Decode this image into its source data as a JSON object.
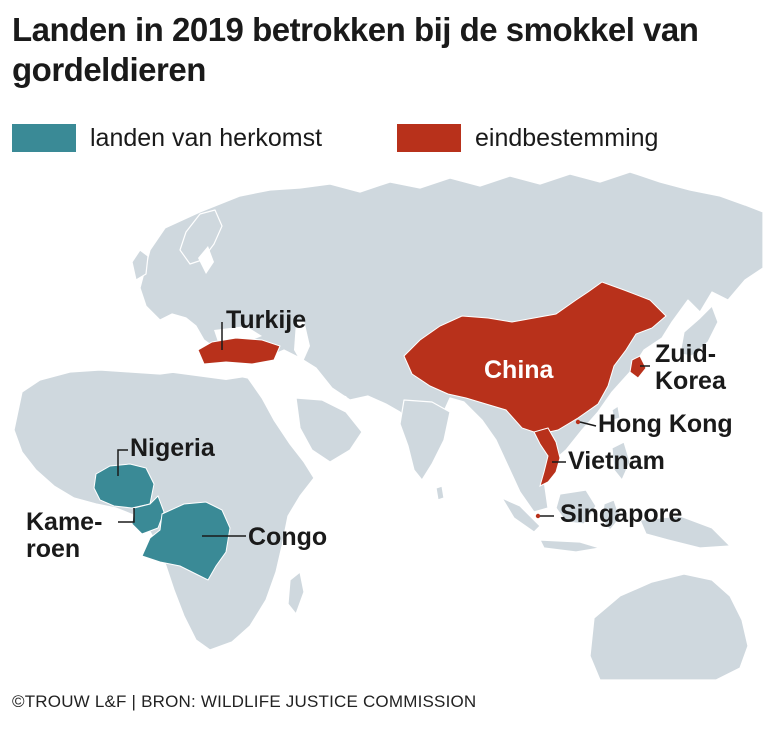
{
  "title": "Landen in 2019 betrokken bij de smokkel van gordeldieren",
  "legend": {
    "origin": {
      "label": "landen van herkomst",
      "color": "#3a8a96"
    },
    "destination": {
      "label": "eindbestemming",
      "color": "#b8311b"
    }
  },
  "map": {
    "land_color": "#cfd8de",
    "water_color": "#ffffff",
    "labels": {
      "turkije": "Turkije",
      "china": "China",
      "zuid_korea_1": "Zuid-",
      "zuid_korea_2": "Korea",
      "hong_kong": "Hong Kong",
      "vietnam": "Vietnam",
      "singapore": "Singapore",
      "nigeria": "Nigeria",
      "kameroen_1": "Kame-",
      "kameroen_2": "roen",
      "congo": "Congo"
    }
  },
  "credit": "©TROUW L&F | BRON: WILDLIFE JUSTICE COMMISSION"
}
